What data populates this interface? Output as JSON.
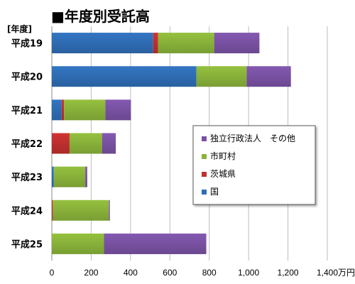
{
  "chart_data": {
    "type": "bar",
    "orientation": "horizontal",
    "stacked": true,
    "title": "■年度別受託高",
    "ylabel": "[年度]",
    "categories": [
      "平成19",
      "平成20",
      "平成21",
      "平成22",
      "平成23",
      "平成24",
      "平成25"
    ],
    "series": [
      {
        "name": "国",
        "color": "#2f6db5",
        "values": [
          515,
          735,
          50,
          0,
          10,
          0,
          0
        ]
      },
      {
        "name": "茨城県",
        "color": "#c0302e",
        "values": [
          25,
          0,
          12,
          90,
          0,
          5,
          0
        ]
      },
      {
        "name": "市町村",
        "color": "#8ab33a",
        "values": [
          285,
          255,
          210,
          165,
          160,
          285,
          265
        ]
      },
      {
        "name": "独立行政法人　その他",
        "color": "#7a52a4",
        "values": [
          230,
          225,
          130,
          70,
          10,
          5,
          520
        ]
      }
    ],
    "legend_order": [
      "独立行政法人　その他",
      "市町村",
      "茨城県",
      "国"
    ],
    "x_ticks": [
      "0",
      "200",
      "400",
      "600",
      "800",
      "1,000",
      "1,200",
      "1,400万円"
    ],
    "xlim": [
      0,
      1400
    ],
    "grid": true,
    "legend_position": "right"
  }
}
